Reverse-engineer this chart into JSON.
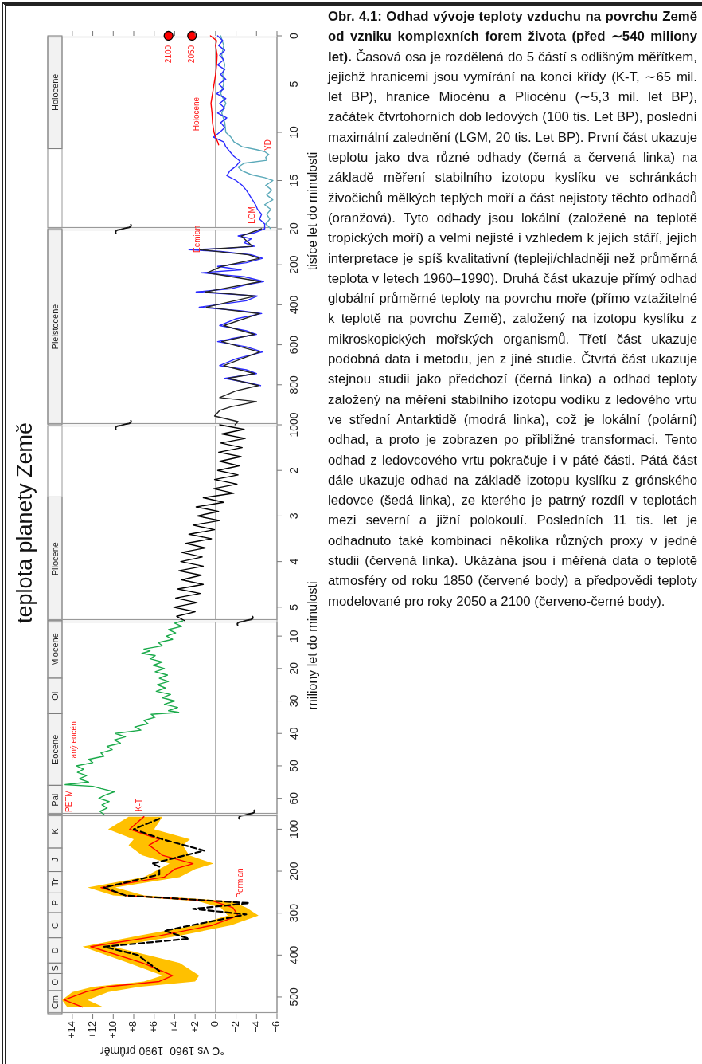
{
  "chart_data": [
    {
      "type": "line",
      "orientation": "horizontal",
      "ylim": [
        20,
        0
      ],
      "xlim": [
        16.4,
        -6
      ],
      "yticks": [
        0,
        5,
        10,
        15,
        20
      ],
      "xticks": [
        {
          "value": -6,
          "label": null
        },
        {
          "value": -4,
          "label": null
        },
        {
          "value": -2,
          "label": null
        },
        {
          "value": 0,
          "label": null
        },
        {
          "value": 2,
          "label": null
        },
        {
          "value": 4,
          "label": null
        },
        {
          "value": 6,
          "label": null
        },
        {
          "value": 8,
          "label": null
        },
        {
          "value": 10,
          "label": null
        },
        {
          "value": 12,
          "label": null
        },
        {
          "value": 14,
          "label": null
        }
      ],
      "tick_labels": "y",
      "ylabel": "tisíce let do minulosti",
      "series": [
        {
          "color": "#5aa9b9",
          "x": [
            0,
            1,
            2,
            3,
            4,
            5,
            6,
            7,
            8,
            9,
            10,
            10.5,
            11,
            11.5,
            11.8,
            12,
            12.3,
            12.6,
            12.9,
            13.2,
            13.6,
            14,
            14.4,
            14.7,
            15,
            15.5,
            16,
            16.5,
            17,
            17.5,
            18,
            18.5,
            19,
            19.5,
            20
          ],
          "values": [
            -0.5,
            -0.8,
            -0.6,
            -0.9,
            -0.7,
            -0.8,
            -0.5,
            -1.0,
            -0.6,
            -0.9,
            -1.0,
            -1.5,
            -1.8,
            -2.6,
            -4.0,
            -4.8,
            -5.2,
            -4.9,
            -5.0,
            -2.8,
            -2.2,
            -2.6,
            -3.5,
            -4.8,
            -5.6,
            -4.9,
            -5.5,
            -5.0,
            -5.6,
            -4.8,
            -5.4,
            -5.0,
            -5.3,
            -4.9,
            -5.4
          ]
        },
        {
          "color": "#2a2aff",
          "x": [
            0,
            0.5,
            1,
            1.5,
            2,
            2.5,
            3,
            3.5,
            4,
            4.5,
            5,
            5.5,
            6,
            6.5,
            7,
            7.5,
            8,
            8.5,
            9,
            9.5,
            10,
            10.5,
            11,
            11.5,
            12,
            12.5,
            13,
            13.5,
            14,
            14.5,
            15,
            15.5,
            16,
            16.5,
            17,
            17.5,
            18,
            18.5,
            19,
            19.5,
            20
          ],
          "values": [
            -0.2,
            -0.7,
            -0.3,
            -0.9,
            -0.4,
            -0.8,
            -0.2,
            -0.9,
            -0.5,
            -1.0,
            -0.3,
            -0.8,
            -0.1,
            -1.0,
            -0.4,
            -0.9,
            -0.2,
            -1.1,
            -0.5,
            -0.9,
            -0.4,
            0.2,
            -0.8,
            -1.0,
            -1.4,
            -1.8,
            -2.4,
            -2.0,
            -1.4,
            -1.1,
            -2.0,
            -2.6,
            -3.0,
            -3.3,
            -3.6,
            -3.9,
            -4.1,
            -4.5,
            -4.3,
            -4.8,
            -4.8
          ]
        },
        {
          "color": "#ff0000",
          "x": [
            0,
            0.5,
            1,
            2,
            3,
            4,
            5,
            6,
            7,
            8,
            9,
            10,
            10.5,
            11,
            11.3
          ],
          "values": [
            0.5,
            -0.1,
            0,
            -0.15,
            -0.1,
            0,
            0.15,
            0.3,
            0.45,
            0.35,
            0.3,
            0.15,
            0,
            -0.2,
            -0.3
          ]
        },
        {
          "type": "scatter",
          "color": "#ff0000",
          "x": [
            0,
            0
          ],
          "values": [
            4.6,
            2.3
          ]
        }
      ],
      "bands": [
        {
          "axis": "y",
          "from": 11.7,
          "to": 0,
          "label": "Holocene",
          "color": "#f2f2f2"
        }
      ],
      "ref_lines": [
        {
          "axis": "x",
          "value": 0,
          "color": "#999999"
        }
      ],
      "annotations": [
        "Obr. 4.1: Odhad vývoje teploty vzduchu na povrchu Země od vzniku komplexních forem života (před ∼540 miliony let).",
        "Časová osa je rozdělená do 5 částí s odlišným měřítkem, jejichž hranicemi jsou vymírání na konci křídy (K-T, ∼65 mil. let BP), hranice Miocénu a Pliocénu (∼5,3 mil. let BP), začátek čtvrtohorních dob ledových (100 tis. Let BP), poslední maximální zalednění (LGM, 20 tis. Let BP). První část ukazuje teplotu jako dva různé odhady (černá a červená linka) na základě měření stabilního izotopu kyslíku ve schránkách živočichů mělkých teplých moří a část nejistoty těchto odhadů (oranžová). Tyto odhady jsou lokální (založené na teplotě tropických moří) a velmi nejisté i vzhledem k jejich stáří, jejich interpretace je spíš kvalitativní (tepleji/chladněji než průměrná teplota v letech 1960–1990). Druhá část ukazuje přímý odhad globální průměrné teploty na povrchu moře (přímo vztažitelné k teplotě na povrchu Země), založený na izotopu kyslíku z mikroskopických mořských organismů. Třetí část ukazuje podobná data i metodu, jen z jiné studie. Čtvrtá část ukazuje stejnou studii jako předchozí (černá linka) a odhad teploty založený na měření stabilního izotopu vodíku z ledového vrtu ve střední Antarktidě (modrá linka), což je lokální (polární) odhad, a proto je zobrazen po přibližné transformaci. Tento odhad z ledovcového vrtu pokračuje i v páté části. Pátá část dále ukazuje odhad na základě izotopu kyslíku z grónského ledovce (šedá linka), ze kterého je patrný rozdíl v teplotách mezi severní a jižní polokoulí. Posledních 11 tis. let je odhadnuto také kombinací několika různých proxy v jedné studii (červená linka). Ukázána jsou i měřená data o teplotě atmosféry od roku 1850 (červené body) a předpovědi teploty modelované pro roky 2050 a 2100 (červeno-černé body).",
        "2100",
        "2050",
        "Holocene",
        "YD",
        "LGM"
      ]
    },
    {
      "type": "line",
      "orientation": "horizontal",
      "ylim": [
        1000,
        20
      ],
      "xlim": [
        16.4,
        -6
      ],
      "yticks": [
        200,
        400,
        600,
        800,
        1000
      ],
      "tick_labels": "y",
      "series": [
        {
          "color": "#2a2aff",
          "x": [
            20,
            40,
            56,
            70,
            90,
            108,
            118,
            125,
            133,
            150,
            168,
            190,
            208,
            225,
            240,
            260,
            284,
            300,
            320,
            336,
            356,
            380,
            412,
            430,
            444,
            470,
            504,
            530,
            548,
            570,
            584,
            610,
            636,
            670,
            704,
            725,
            744,
            768,
            790,
            804
          ],
          "values": [
            -4.8,
            -3.8,
            -2.2,
            -3.5,
            -2.8,
            -3.8,
            -1.0,
            2.6,
            -0.5,
            -3.5,
            -4.6,
            -3.0,
            -0.2,
            -2.5,
            1.4,
            -2.8,
            -4.7,
            -3.0,
            -1.5,
            1.9,
            -4.1,
            -3.0,
            1.6,
            -2.5,
            -4.5,
            -2.0,
            -0.4,
            -3.0,
            -4.0,
            -1.5,
            -0.2,
            -3.0,
            -4.6,
            -2.0,
            -0.4,
            -3.0,
            -4.0,
            -0.9,
            -3.2,
            -4.4
          ]
        },
        {
          "color": "#222222",
          "x": [
            20,
            56,
            108,
            125,
            150,
            168,
            208,
            240,
            284,
            336,
            356,
            412,
            444,
            504,
            548,
            584,
            636,
            704,
            744,
            768,
            804,
            830,
            864,
            884,
            910,
            928,
            956,
            984,
            1000
          ],
          "values": [
            -4.5,
            -2.5,
            -3.6,
            1.5,
            -3.2,
            -4.3,
            -0.6,
            0.8,
            -4.4,
            1.0,
            -3.9,
            0.9,
            -4.3,
            -0.8,
            -3.8,
            -0.6,
            -4.3,
            -0.8,
            -3.8,
            -1.2,
            -4.2,
            -2.0,
            -0.4,
            -4.0,
            -1.5,
            -0.4,
            0.1,
            -2.2,
            -1.9
          ]
        }
      ],
      "bands": [
        {
          "axis": "y",
          "from": 1000,
          "to": 20,
          "label": "Pleistocene",
          "color": "#f2f2f2"
        }
      ],
      "ref_lines": [
        {
          "axis": "x",
          "value": 0,
          "color": "#999999"
        }
      ],
      "annotations": [
        "Eemian"
      ]
    },
    {
      "type": "line",
      "orientation": "horizontal",
      "title": "teplota planety Země",
      "ylim": [
        5.3,
        1
      ],
      "xlim": [
        16.4,
        -6
      ],
      "yticks": [
        2,
        3,
        4,
        5
      ],
      "tick_labels": "y",
      "series": [
        {
          "color": "#000000",
          "x": [
            1.0,
            1.1,
            1.2,
            1.3,
            1.4,
            1.5,
            1.6,
            1.7,
            1.8,
            1.9,
            2.0,
            2.1,
            2.2,
            2.3,
            2.4,
            2.5,
            2.6,
            2.7,
            2.8,
            2.9,
            3.0,
            3.1,
            3.2,
            3.3,
            3.4,
            3.5,
            3.6,
            3.7,
            3.8,
            3.9,
            4.0,
            4.1,
            4.2,
            4.3,
            4.4,
            4.5,
            4.6,
            4.7,
            4.8,
            4.9,
            5.0,
            5.1,
            5.2,
            5.3
          ],
          "values": [
            -0.4,
            -2.8,
            -0.6,
            -2.9,
            -0.5,
            -2.6,
            -0.3,
            -2.5,
            -0.4,
            -2.3,
            -0.2,
            -2.2,
            0.1,
            -2.1,
            0.2,
            -1.8,
            1.2,
            -0.8,
            1.9,
            -0.3,
            1.8,
            -0.4,
            2.2,
            0.1,
            2.6,
            0.4,
            2.9,
            1.0,
            3.3,
            1.3,
            3.4,
            1.2,
            3.6,
            1.4,
            3.3,
            1.2,
            3.7,
            1.5,
            3.9,
            1.8,
            4.1,
            2.0,
            3.8,
            3.0
          ]
        }
      ],
      "bands": [
        {
          "axis": "y",
          "from": 5.3,
          "to": 2.58,
          "label": "Pliocene",
          "color": "#f2f2f2"
        }
      ],
      "ref_lines": [
        {
          "axis": "x",
          "value": 0,
          "color": "#999999"
        }
      ]
    },
    {
      "type": "line",
      "orientation": "horizontal",
      "ylim": [
        65,
        5.3
      ],
      "xlim": [
        16.4,
        -6
      ],
      "yticks": [
        10,
        20,
        30,
        40,
        50,
        60
      ],
      "tick_labels": "y",
      "ylabel": "miliony let do minulosti",
      "series": [
        {
          "color": "#1aaa4a",
          "x": [
            5.3,
            6,
            7,
            8,
            9,
            10,
            11,
            12,
            13,
            14,
            14.6,
            15.3,
            16,
            17,
            18,
            19,
            20,
            21,
            22,
            23,
            24,
            25,
            26,
            27,
            28,
            29,
            30,
            31,
            32,
            33,
            33.5,
            34.1,
            35,
            36,
            37,
            38,
            39,
            40,
            41,
            42,
            43,
            44,
            45,
            46,
            47,
            48,
            49,
            50,
            51,
            52,
            53,
            54,
            55,
            55.8,
            56.3,
            57,
            58,
            59,
            60,
            61,
            62,
            63,
            64,
            65
          ],
          "values": [
            3.2,
            4.0,
            3.3,
            4.6,
            3.9,
            4.8,
            4.2,
            5.6,
            5.2,
            7.0,
            6.4,
            7.2,
            5.9,
            6.4,
            5.2,
            6.1,
            5.0,
            5.9,
            4.7,
            5.5,
            4.6,
            5.7,
            4.9,
            5.8,
            4.4,
            5.2,
            4.0,
            5.0,
            3.7,
            4.6,
            3.6,
            6.3,
            5.9,
            7.0,
            6.6,
            7.9,
            7.3,
            9.8,
            8.8,
            9.9,
            9.3,
            10.6,
            10.1,
            11.2,
            10.9,
            12.4,
            12.0,
            13.6,
            12.9,
            13.5,
            12.6,
            13.3,
            12.4,
            14.7,
            12.0,
            11.2,
            9.9,
            10.8,
            11.4,
            10.4,
            11.1,
            10.6,
            11.3,
            10.9
          ]
        }
      ],
      "bands": [
        {
          "axis": "y",
          "from": 23,
          "to": 5.3,
          "label": "Miocene",
          "color": "#f2f2f2"
        },
        {
          "axis": "y",
          "from": 33.9,
          "to": 23,
          "label": "Ol",
          "color": "#f2f2f2"
        },
        {
          "axis": "y",
          "from": 56,
          "to": 33.9,
          "label": "Eocene",
          "color": "#f2f2f2"
        },
        {
          "axis": "y",
          "from": 65,
          "to": 56,
          "label": "Pal",
          "color": "#f2f2f2"
        }
      ],
      "ref_lines": [
        {
          "axis": "x",
          "value": 0,
          "color": "#999999"
        }
      ],
      "annotations": [
        "PETM",
        "raný eocén",
        "K-T"
      ]
    },
    {
      "type": "line",
      "orientation": "horizontal",
      "ylim": [
        540,
        65
      ],
      "xlim": [
        16.4,
        -6
      ],
      "yticks": [
        100,
        200,
        300,
        400,
        500
      ],
      "xticks": [
        {
          "value": -6,
          "label": "−6"
        },
        {
          "value": -4,
          "label": "−4"
        },
        {
          "value": -2,
          "label": "−2"
        },
        0,
        {
          "value": 2,
          "label": "+2"
        },
        {
          "value": 4,
          "label": "+4"
        },
        {
          "value": 6,
          "label": "+6"
        },
        {
          "value": 8,
          "label": "+8"
        },
        {
          "value": 10,
          "label": "+10"
        },
        {
          "value": 12,
          "label": "+12"
        },
        {
          "value": 14,
          "label": "+14"
        }
      ],
      "xlabel": "°C vs 1960–1990 průměr",
      "series": [
        {
          "color": "#ff0000",
          "x": [
            70,
            100,
            124,
            138,
            162,
            182,
            195,
            214,
            239,
            258,
            271,
            287,
            306,
            329,
            354,
            380,
            419,
            449,
            463,
            476,
            488,
            507,
            524
          ],
          "values": [
            7.0,
            8.4,
            5.5,
            6.5,
            5.2,
            2.2,
            4.0,
            5.0,
            11.2,
            8.8,
            0.3,
            -1.7,
            -2.2,
            0.3,
            5.5,
            12.2,
            7.1,
            4.2,
            5.5,
            10.7,
            12.7,
            14.8,
            13.0
          ],
          "lower": [
            5.2,
            6.0,
            2.5,
            3.2,
            2.6,
            0.2,
            2.0,
            3.5,
            9.8,
            7.0,
            -1.5,
            -3.0,
            -4.2,
            -1.5,
            3.5,
            10.0,
            3.5,
            1.6,
            2.0,
            7.5,
            10.5,
            12.5,
            11.0
          ],
          "upper": [
            8.5,
            10.5,
            8.0,
            8.5,
            7.2,
            4.5,
            5.5,
            7.0,
            12.5,
            10.0,
            1.8,
            -0.5,
            -1.2,
            2.0,
            7.5,
            13.0,
            8.5,
            5.2,
            7.0,
            12.0,
            14.0,
            15.0,
            14.5
          ]
        },
        {
          "color": "#000000",
          "line_style": "dashed",
          "x": [
            75,
            100,
            124,
            151,
            182,
            189,
            208,
            239,
            258,
            276,
            290,
            303,
            342,
            361,
            380,
            400,
            438
          ],
          "values": [
            5.5,
            8.0,
            5.2,
            1.1,
            6.2,
            5.5,
            5.5,
            10.9,
            8.8,
            -3.3,
            2.2,
            -3.0,
            5.0,
            2.6,
            10.9,
            7.6,
            5.5
          ]
        }
      ],
      "bands": [
        {
          "axis": "y",
          "from": 145,
          "to": 65,
          "label": "K",
          "color": "#f2f2f2"
        },
        {
          "axis": "y",
          "from": 201,
          "to": 145,
          "label": "J",
          "color": "#f2f2f2"
        },
        {
          "axis": "y",
          "from": 252,
          "to": 201,
          "label": "Tr",
          "color": "#f2f2f2"
        },
        {
          "axis": "y",
          "from": 299,
          "to": 252,
          "label": "P",
          "color": "#f2f2f2"
        },
        {
          "axis": "y",
          "from": 359,
          "to": 299,
          "label": "C",
          "color": "#f2f2f2"
        },
        {
          "axis": "y",
          "from": 419,
          "to": 359,
          "label": "D",
          "color": "#f2f2f2"
        },
        {
          "axis": "y",
          "from": 444,
          "to": 419,
          "label": "S",
          "color": "#f2f2f2"
        },
        {
          "axis": "y",
          "from": 485,
          "to": 444,
          "label": "O",
          "color": "#f2f2f2"
        },
        {
          "axis": "y",
          "from": 540,
          "to": 485,
          "label": "Cm",
          "color": "#f2f2f2"
        }
      ],
      "ref_lines": [
        {
          "axis": "x",
          "value": 0,
          "color": "#999999"
        }
      ],
      "annotations": [
        "Permian"
      ]
    }
  ]
}
